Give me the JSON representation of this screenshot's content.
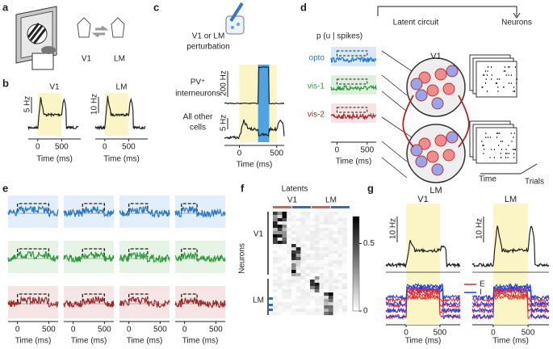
{
  "panels": {
    "a": {
      "label": "a",
      "texts": [
        "V1",
        "LM"
      ]
    },
    "b": {
      "label": "b",
      "titles": [
        "V1",
        "LM"
      ],
      "scale_bars": [
        "5 Hz",
        "10 Hz"
      ],
      "xlim": [
        -200,
        900
      ],
      "xticks": [
        0,
        500
      ],
      "xlabel": "Time (ms)"
    },
    "c": {
      "label": "c",
      "perturbation": [
        "V1 or LM",
        "perturbation"
      ],
      "rows": [
        [
          "PV⁺",
          "interneurons"
        ],
        [
          "All other",
          "cells"
        ]
      ],
      "scale_bars": [
        "200 Hz",
        "5 Hz"
      ],
      "xlim": [
        -200,
        600
      ],
      "xticks": [
        0,
        500
      ],
      "xlabel": "Time (ms)"
    },
    "d": {
      "label": "d",
      "title": "p (u | spikes)",
      "conditions": [
        "opto",
        "vis-1",
        "vis-2"
      ],
      "circuit_title": "Latent circuit",
      "areas": [
        "V1",
        "LM"
      ],
      "neurons_title": "Neurons",
      "raster_axes": [
        "Time",
        "Trials"
      ],
      "xlim": [
        -100,
        650
      ],
      "xticks": [
        0,
        500
      ],
      "xlabel": "Time (ms)"
    },
    "e": {
      "label": "e",
      "xlim": [
        -150,
        650
      ],
      "xticks": [
        0,
        500
      ],
      "xlabel": "Time (ms)"
    },
    "f": {
      "label": "f",
      "title": "Latents",
      "columns": [
        "V1",
        "LM"
      ],
      "ylabel": "Neurons",
      "rows": [
        "V1",
        "LM"
      ],
      "colorbar_lim": [
        0,
        0.7
      ],
      "colorbar_ticks": [
        0,
        0.5
      ]
    },
    "g": {
      "label": "g",
      "titles": [
        "V1",
        "LM"
      ],
      "scale_bars": [
        "10 Hz",
        "10 Hz"
      ],
      "legend": [
        {
          "name": "E",
          "color": "#e8262b"
        },
        {
          "name": "I",
          "color": "#1f3fe0"
        }
      ],
      "xlim": [
        -300,
        800
      ],
      "xticks": [
        0,
        500
      ],
      "xlabel": "Time (ms)"
    }
  }
}
